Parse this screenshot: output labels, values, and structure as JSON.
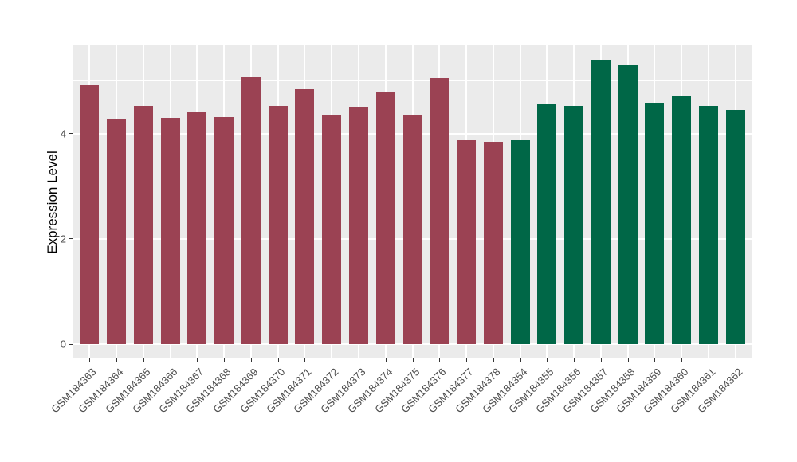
{
  "chart_data": {
    "type": "bar",
    "title": "",
    "xlabel": "",
    "ylabel": "Expression Level",
    "ylim": [
      -0.27,
      5.69
    ],
    "yticks_major": [
      0,
      2,
      4
    ],
    "yticks_minor": [
      1,
      3,
      5
    ],
    "grid": true,
    "legend": false,
    "panel_background": "#EBEBEB",
    "gridline_color": "#FFFFFF",
    "tick_color": "#333333",
    "tick_label_color": "#4D4D4D",
    "group_colors": {
      "group1": "#9B4253",
      "group2": "#006747"
    },
    "categories": [
      "GSM184363",
      "GSM184364",
      "GSM184365",
      "GSM184366",
      "GSM184367",
      "GSM184368",
      "GSM184369",
      "GSM184370",
      "GSM184371",
      "GSM184372",
      "GSM184373",
      "GSM184374",
      "GSM184375",
      "GSM184376",
      "GSM184377",
      "GSM184378",
      "GSM184354",
      "GSM184355",
      "GSM184356",
      "GSM184357",
      "GSM184358",
      "GSM184359",
      "GSM184360",
      "GSM184361",
      "GSM184362"
    ],
    "bars": [
      {
        "label": "GSM184363",
        "value": 4.92,
        "group": "group1"
      },
      {
        "label": "GSM184364",
        "value": 4.29,
        "group": "group1"
      },
      {
        "label": "GSM184365",
        "value": 4.53,
        "group": "group1"
      },
      {
        "label": "GSM184366",
        "value": 4.3,
        "group": "group1"
      },
      {
        "label": "GSM184367",
        "value": 4.4,
        "group": "group1"
      },
      {
        "label": "GSM184368",
        "value": 4.31,
        "group": "group1"
      },
      {
        "label": "GSM184369",
        "value": 5.07,
        "group": "group1"
      },
      {
        "label": "GSM184370",
        "value": 4.52,
        "group": "group1"
      },
      {
        "label": "GSM184371",
        "value": 4.84,
        "group": "group1"
      },
      {
        "label": "GSM184372",
        "value": 4.34,
        "group": "group1"
      },
      {
        "label": "GSM184373",
        "value": 4.51,
        "group": "group1"
      },
      {
        "label": "GSM184374",
        "value": 4.8,
        "group": "group1"
      },
      {
        "label": "GSM184375",
        "value": 4.35,
        "group": "group1"
      },
      {
        "label": "GSM184376",
        "value": 5.06,
        "group": "group1"
      },
      {
        "label": "GSM184377",
        "value": 3.87,
        "group": "group1"
      },
      {
        "label": "GSM184378",
        "value": 3.84,
        "group": "group1"
      },
      {
        "label": "GSM184354",
        "value": 3.87,
        "group": "group2"
      },
      {
        "label": "GSM184355",
        "value": 4.55,
        "group": "group2"
      },
      {
        "label": "GSM184356",
        "value": 4.53,
        "group": "group2"
      },
      {
        "label": "GSM184357",
        "value": 5.41,
        "group": "group2"
      },
      {
        "label": "GSM184358",
        "value": 5.3,
        "group": "group2"
      },
      {
        "label": "GSM184359",
        "value": 4.59,
        "group": "group2"
      },
      {
        "label": "GSM184360",
        "value": 4.71,
        "group": "group2"
      },
      {
        "label": "GSM184361",
        "value": 4.53,
        "group": "group2"
      },
      {
        "label": "GSM184362",
        "value": 4.45,
        "group": "group2"
      }
    ]
  }
}
